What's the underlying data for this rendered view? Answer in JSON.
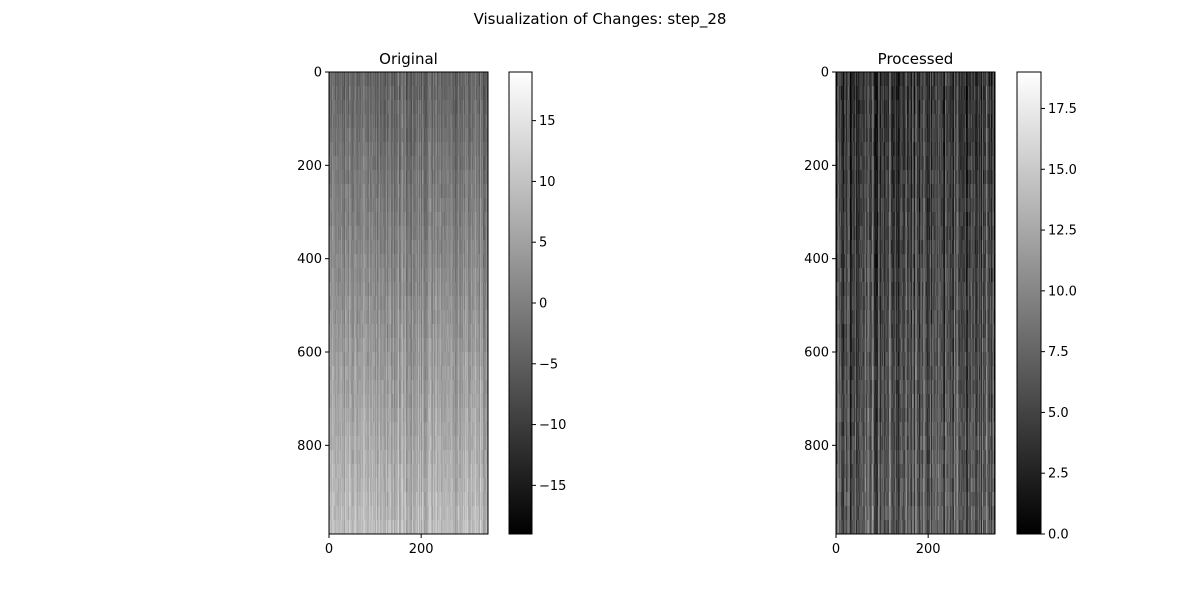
{
  "chart_data": {
    "suptitle": "Visualization of Changes: step_28",
    "type": "heatmap",
    "colormap": "gray",
    "panels": [
      {
        "title": "Original",
        "image_shape": [
          990,
          345
        ],
        "xticks": [
          0,
          200
        ],
        "yticks": [
          0,
          200,
          400,
          600,
          800
        ],
        "colorbar": {
          "vmin": -19,
          "vmax": 19,
          "ticks": [
            -15,
            -10,
            -5,
            0,
            5,
            10,
            15
          ],
          "tick_labels": [
            "−15",
            "−10",
            "−5",
            "0",
            "5",
            "10",
            "15"
          ]
        },
        "value_trend": {
          "top": -4,
          "bottom": 9,
          "noise": 5
        }
      },
      {
        "title": "Processed",
        "image_shape": [
          990,
          345
        ],
        "xticks": [
          0,
          200
        ],
        "yticks": [
          0,
          200,
          400,
          600,
          800
        ],
        "colorbar": {
          "vmin": 0,
          "vmax": 19,
          "ticks": [
            0,
            2.5,
            5,
            7.5,
            10,
            12.5,
            15,
            17.5
          ],
          "tick_labels": [
            "0.0",
            "2.5",
            "5.0",
            "7.5",
            "10.0",
            "12.5",
            "15.0",
            "17.5"
          ]
        },
        "value_trend": {
          "top": 4,
          "bottom": 7,
          "noise": 5
        }
      }
    ]
  }
}
